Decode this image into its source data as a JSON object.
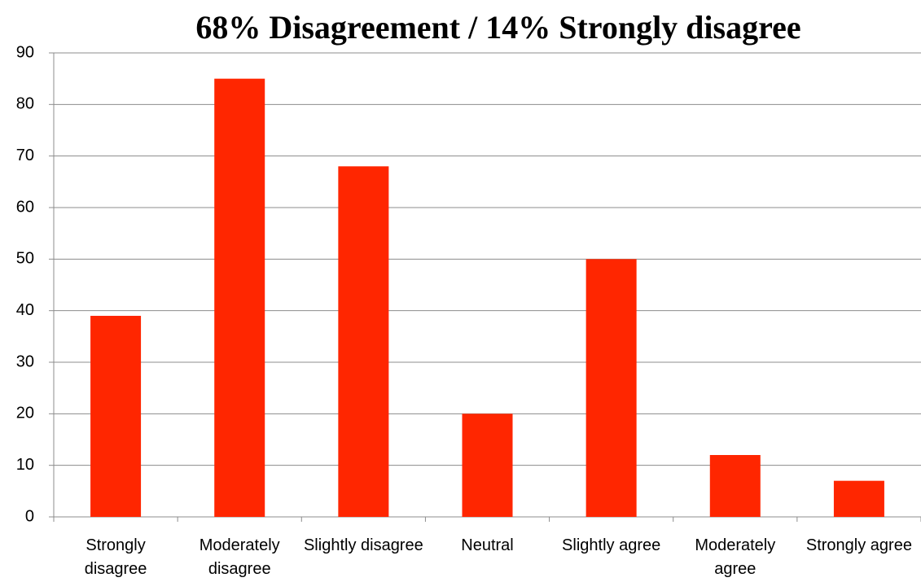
{
  "chart_data": {
    "type": "bar",
    "title": "68% Disagreement / 14% Strongly disagree",
    "categories": [
      "Strongly disagree",
      "Moderately disagree",
      "Slightly disagree",
      "Neutral",
      "Slightly agree",
      "Moderately agree",
      "Strongly agree"
    ],
    "values": [
      39,
      85,
      68,
      20,
      50,
      12,
      7
    ],
    "color": "#ff2600",
    "ylim": [
      0,
      90
    ],
    "yticks": [
      0,
      10,
      20,
      30,
      40,
      50,
      60,
      70,
      80,
      90
    ],
    "grid": true
  }
}
